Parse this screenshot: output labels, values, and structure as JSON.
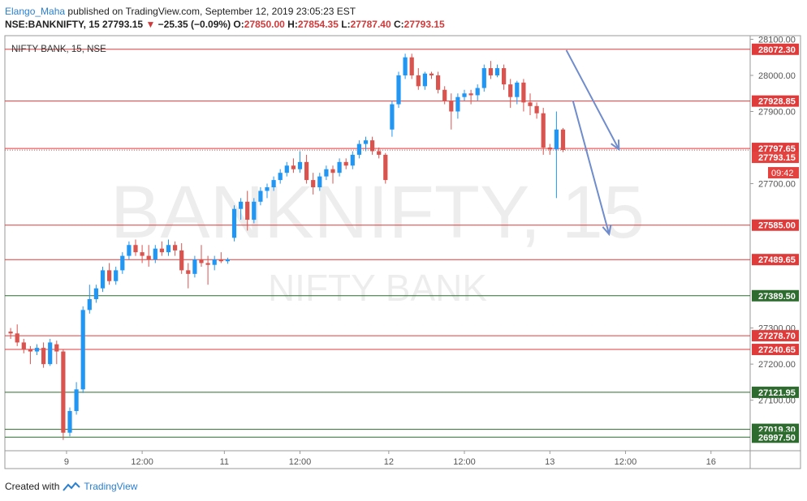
{
  "header": {
    "author": "Elango_Maha",
    "published_text": "published on TradingView.com, September 12, 2019 23:05:23 EST",
    "symbol": "NSE:BANKNIFTY, 15",
    "last": "27793.15",
    "change_arrow": "▼",
    "change": "−25.35 (−0.09%)",
    "o_label": "O:",
    "o_value": "27850.00",
    "h_label": "H:",
    "h_value": "27854.35",
    "l_label": "L:",
    "l_value": "27787.40",
    "c_label": "C:",
    "c_value": "27793.15"
  },
  "footer": {
    "created_with": "Created with",
    "brand": "TradingView"
  },
  "colors": {
    "up": "#2196f3",
    "down": "#d9534f",
    "resistance_line": "#e03b3b",
    "support_line": "#2e6b2e",
    "arrow": "#6f8ccc",
    "price_tag": "#e3423e"
  },
  "chart_data": {
    "type": "candlestick",
    "legend_label": "NIFTY BANK, 15, NSE",
    "watermark_symbol": "BANKNIFTY, 15",
    "watermark_name": "NIFTY BANK",
    "ylim": [
      26960,
      28110
    ],
    "y_ticks": [
      27100,
      27200,
      27300,
      27700,
      27900,
      28000,
      28100
    ],
    "x_ticks": [
      "9",
      "12:00",
      "11",
      "12:00",
      "12",
      "12:00",
      "13",
      "12:00",
      "16"
    ],
    "x_tick_index": [
      9.5,
      21,
      33.5,
      45,
      58.5,
      70,
      83,
      94.5,
      107.5
    ],
    "level_lines": [
      {
        "value": 28072.3,
        "label": "28072.30",
        "kind": "resistance"
      },
      {
        "value": 27928.85,
        "label": "27928.85",
        "kind": "resistance"
      },
      {
        "value": 27797.65,
        "label": "27797.65",
        "kind": "resistance"
      },
      {
        "value": 27585.0,
        "label": "27585.00",
        "kind": "resistance"
      },
      {
        "value": 27489.65,
        "label": "27489.65",
        "kind": "resistance"
      },
      {
        "value": 27389.5,
        "label": "27389.50",
        "kind": "support"
      },
      {
        "value": 27278.7,
        "label": "27278.70",
        "kind": "resistance"
      },
      {
        "value": 27240.65,
        "label": "27240.65",
        "kind": "resistance"
      },
      {
        "value": 27121.95,
        "label": "27121.95",
        "kind": "support"
      },
      {
        "value": 27019.3,
        "label": "27019.30",
        "kind": "support"
      },
      {
        "value": 26997.5,
        "label": "26997.50",
        "kind": "support"
      }
    ],
    "last_price": {
      "value": 27793.15,
      "label": "27793.15",
      "countdown": "09:42"
    },
    "arrows": [
      {
        "from": [
          85.5,
          28070
        ],
        "to": [
          93.5,
          27795
        ]
      },
      {
        "from": [
          86.5,
          27930
        ],
        "to": [
          92,
          27560
        ]
      }
    ],
    "candles": [
      [
        1,
        27290,
        27300,
        27270,
        27285
      ],
      [
        2,
        27285,
        27310,
        27250,
        27260
      ],
      [
        3,
        27260,
        27270,
        27230,
        27240
      ],
      [
        4,
        27240,
        27250,
        27200,
        27235
      ],
      [
        5,
        27235,
        27255,
        27225,
        27245
      ],
      [
        6,
        27245,
        27260,
        27190,
        27200
      ],
      [
        7,
        27200,
        27270,
        27195,
        27260
      ],
      [
        8,
        27255,
        27265,
        27200,
        27235
      ],
      [
        9,
        27235,
        27240,
        26990,
        27010
      ],
      [
        10,
        27010,
        27080,
        27000,
        27070
      ],
      [
        11,
        27070,
        27150,
        27060,
        27130
      ],
      [
        12,
        27130,
        27360,
        27120,
        27350
      ],
      [
        13,
        27350,
        27420,
        27340,
        27380
      ],
      [
        14,
        27380,
        27420,
        27370,
        27410
      ],
      [
        15,
        27410,
        27470,
        27400,
        27460
      ],
      [
        16,
        27460,
        27480,
        27420,
        27430
      ],
      [
        17,
        27430,
        27470,
        27420,
        27460
      ],
      [
        18,
        27460,
        27510,
        27450,
        27500
      ],
      [
        19,
        27500,
        27540,
        27490,
        27530
      ],
      [
        20,
        27530,
        27545,
        27500,
        27510
      ],
      [
        21,
        27510,
        27530,
        27480,
        27500
      ],
      [
        22,
        27500,
        27530,
        27470,
        27490
      ],
      [
        23,
        27490,
        27530,
        27480,
        27520
      ],
      [
        24,
        27520,
        27540,
        27500,
        27510
      ],
      [
        25,
        27510,
        27545,
        27500,
        27530
      ],
      [
        26,
        27530,
        27540,
        27500,
        27515
      ],
      [
        27,
        27515,
        27535,
        27450,
        27460
      ],
      [
        28,
        27460,
        27480,
        27410,
        27450
      ],
      [
        29,
        27450,
        27500,
        27440,
        27490
      ],
      [
        30,
        27490,
        27530,
        27470,
        27480
      ],
      [
        31,
        27480,
        27500,
        27420,
        27475
      ],
      [
        32,
        27475,
        27500,
        27460,
        27490
      ],
      [
        33,
        27490,
        27510,
        27480,
        27485
      ],
      [
        34,
        27485,
        27495,
        27478,
        27490
      ],
      [
        35,
        27550,
        27640,
        27540,
        27630
      ],
      [
        36,
        27630,
        27660,
        27600,
        27650
      ],
      [
        37,
        27650,
        27680,
        27570,
        27600
      ],
      [
        38,
        27600,
        27660,
        27590,
        27650
      ],
      [
        39,
        27650,
        27690,
        27640,
        27680
      ],
      [
        40,
        27680,
        27700,
        27660,
        27690
      ],
      [
        41,
        27690,
        27720,
        27680,
        27710
      ],
      [
        42,
        27710,
        27740,
        27700,
        27730
      ],
      [
        43,
        27730,
        27760,
        27720,
        27750
      ],
      [
        44,
        27750,
        27770,
        27730,
        27740
      ],
      [
        45,
        27740,
        27790,
        27730,
        27760
      ],
      [
        46,
        27760,
        27780,
        27700,
        27710
      ],
      [
        47,
        27710,
        27730,
        27670,
        27690
      ],
      [
        48,
        27690,
        27730,
        27680,
        27720
      ],
      [
        49,
        27720,
        27750,
        27710,
        27740
      ],
      [
        50,
        27740,
        27750,
        27700,
        27730
      ],
      [
        51,
        27730,
        27770,
        27720,
        27760
      ],
      [
        52,
        27760,
        27770,
        27740,
        27750
      ],
      [
        53,
        27750,
        27790,
        27740,
        27780
      ],
      [
        54,
        27780,
        27820,
        27770,
        27810
      ],
      [
        55,
        27810,
        27830,
        27790,
        27820
      ],
      [
        56,
        27820,
        27830,
        27780,
        27790
      ],
      [
        57,
        27790,
        27800,
        27770,
        27780
      ],
      [
        58,
        27780,
        27785,
        27700,
        27710
      ],
      [
        59,
        27850,
        27930,
        27830,
        27920
      ],
      [
        60,
        27920,
        28010,
        27910,
        28000
      ],
      [
        61,
        28000,
        28060,
        27990,
        28050
      ],
      [
        62,
        28050,
        28060,
        27990,
        28000
      ],
      [
        63,
        28000,
        28020,
        27960,
        27970
      ],
      [
        64,
        27970,
        28010,
        27960,
        28005
      ],
      [
        65,
        28005,
        28010,
        27990,
        28000
      ],
      [
        66,
        28000,
        28010,
        27950,
        27960
      ],
      [
        67,
        27960,
        27970,
        27920,
        27930
      ],
      [
        68,
        27930,
        27950,
        27850,
        27900
      ],
      [
        69,
        27900,
        27950,
        27880,
        27940
      ],
      [
        70,
        27940,
        27960,
        27930,
        27950
      ],
      [
        71,
        27950,
        27960,
        27920,
        27945
      ],
      [
        72,
        27945,
        27975,
        27930,
        27965
      ],
      [
        73,
        27965,
        28030,
        27955,
        28020
      ],
      [
        74,
        28020,
        28040,
        27990,
        28000
      ],
      [
        75,
        28000,
        28030,
        27995,
        28020
      ],
      [
        76,
        28020,
        28030,
        27960,
        27975
      ],
      [
        77,
        27975,
        27990,
        27910,
        27940
      ],
      [
        78,
        27940,
        27985,
        27920,
        27980
      ],
      [
        79,
        27980,
        27990,
        27900,
        27925
      ],
      [
        80,
        27925,
        27950,
        27890,
        27915
      ],
      [
        81,
        27915,
        27925,
        27880,
        27895
      ],
      [
        82,
        27895,
        27910,
        27780,
        27800
      ],
      [
        83,
        27800,
        27810,
        27780,
        27795
      ],
      [
        84,
        27795,
        27900,
        27660,
        27850
      ],
      [
        85,
        27850,
        27854.35,
        27787.4,
        27793.15
      ]
    ]
  }
}
